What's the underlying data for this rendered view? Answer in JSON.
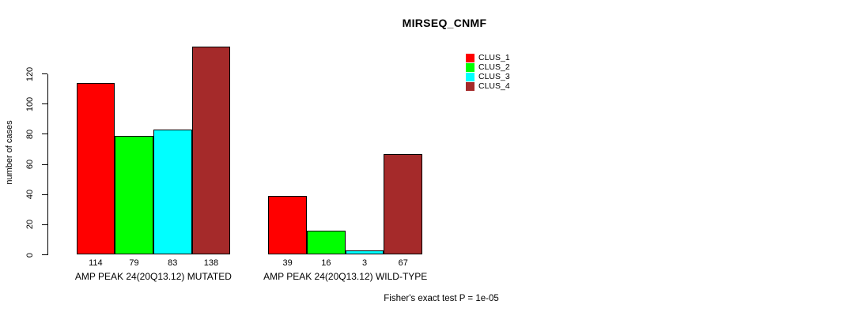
{
  "chart_data": {
    "type": "bar",
    "title": "MIRSEQ_CNMF",
    "ylabel": "number of cases",
    "yticks": [
      0,
      20,
      40,
      60,
      80,
      100,
      120
    ],
    "ylim": [
      0,
      140
    ],
    "grid": false,
    "legend_position": "top-right",
    "categories": [
      "AMP PEAK 24(20Q13.12) MUTATED",
      "AMP PEAK 24(20Q13.12) WILD-TYPE"
    ],
    "series": [
      {
        "name": "CLUS_1",
        "color": "#ff0000",
        "values": [
          114,
          39
        ]
      },
      {
        "name": "CLUS_2",
        "color": "#00ff00",
        "values": [
          79,
          16
        ]
      },
      {
        "name": "CLUS_3",
        "color": "#00ffff",
        "values": [
          83,
          3
        ]
      },
      {
        "name": "CLUS_4",
        "color": "#a52a2a",
        "values": [
          138,
          67
        ]
      }
    ],
    "footnote": "Fisher's exact test P = 1e-05"
  }
}
